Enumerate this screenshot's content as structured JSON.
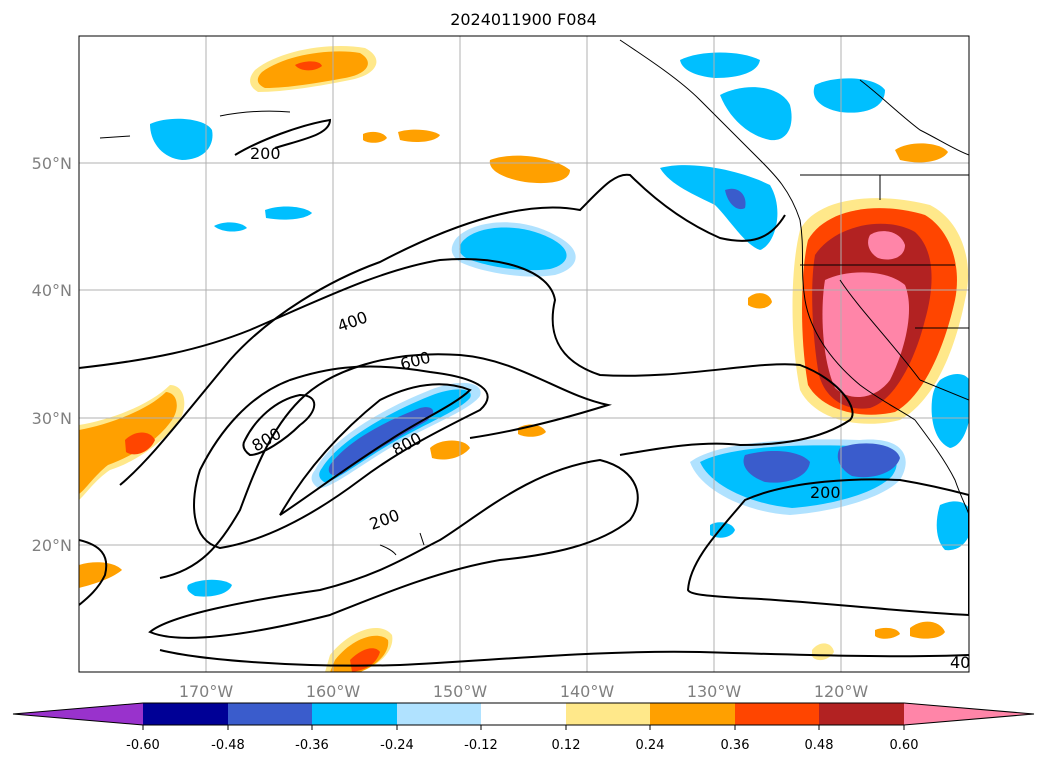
{
  "title": "2024011900 F084",
  "map": {
    "lat_labels": [
      "50°N",
      "40°N",
      "30°N",
      "20°N"
    ],
    "lon_labels": [
      "170°W",
      "160°W",
      "150°W",
      "140°W",
      "130°W",
      "120°W"
    ],
    "contour_labels": [
      "200",
      "400",
      "600",
      "800",
      "800",
      "200",
      "200",
      "40"
    ]
  },
  "colorbar": {
    "tick_labels": [
      "-0.60",
      "-0.48",
      "-0.36",
      "-0.24",
      "-0.12",
      "0.12",
      "0.24",
      "0.36",
      "0.48",
      "0.60"
    ],
    "colors": [
      "#9932cc",
      "#000096",
      "#3a5ccc",
      "#00bfff",
      "#b0e2ff",
      "#ffffff",
      "#ffe88a",
      "#ffa000",
      "#ff4500",
      "#b22222",
      "#ff85a8"
    ]
  }
}
